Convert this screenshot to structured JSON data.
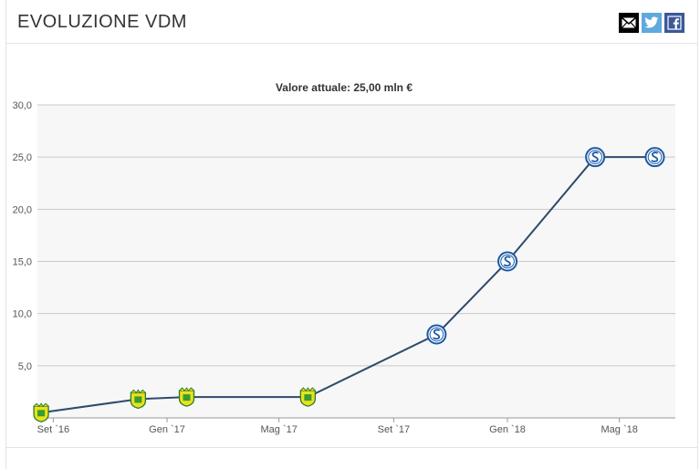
{
  "header": {
    "title": "EVOLUZIONE VDM",
    "share_icons": [
      "mail-icon",
      "twitter-icon",
      "facebook-icon"
    ]
  },
  "chart_data": {
    "type": "line",
    "title": "Valore attuale: 25,00 mln €",
    "xlabel": "",
    "ylabel": "",
    "x_ticks": [
      "Set `16",
      "Gen `17",
      "Mag `17",
      "Set `17",
      "Gen `18",
      "Mag `18"
    ],
    "x_tick_dates": [
      "2016-09-01",
      "2017-01-01",
      "2017-05-01",
      "2017-09-01",
      "2018-01-01",
      "2018-05-01"
    ],
    "x_range": [
      "2016-08-15",
      "2018-06-30"
    ],
    "y_ticks": [
      "5,0",
      "10,0",
      "15,0",
      "20,0",
      "25,0",
      "30,0"
    ],
    "ylim": [
      0,
      30
    ],
    "grid": true,
    "line_color": "#2d4a6b",
    "series": [
      {
        "points": [
          {
            "x": "2016-08-19",
            "y": 0.5,
            "club": "nantes-crest"
          },
          {
            "x": "2016-12-01",
            "y": 1.8,
            "club": "nantes-crest"
          },
          {
            "x": "2017-01-22",
            "y": 2.0,
            "club": "nantes-crest"
          },
          {
            "x": "2017-06-01",
            "y": 2.0,
            "club": "nantes-crest"
          },
          {
            "x": "2017-10-17",
            "y": 8.0,
            "club": "schalke-crest"
          },
          {
            "x": "2018-01-01",
            "y": 15.0,
            "club": "schalke-crest"
          },
          {
            "x": "2018-04-05",
            "y": 25.0,
            "club": "schalke-crest"
          },
          {
            "x": "2018-06-08",
            "y": 25.0,
            "club": "schalke-crest"
          }
        ]
      }
    ]
  }
}
